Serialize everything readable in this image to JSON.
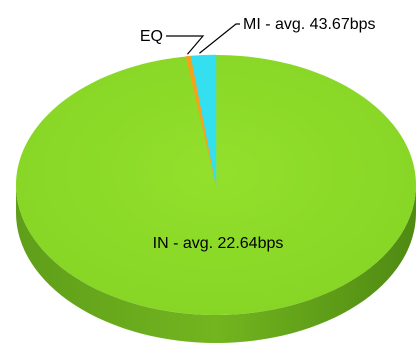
{
  "chart_data": {
    "type": "pie",
    "title": "",
    "slices": [
      {
        "name": "IN",
        "label": "IN - avg. 22.64bps",
        "value": 97.6,
        "color": "#8fdc2a"
      },
      {
        "name": "EQ",
        "label": "EQ",
        "value": 0.4,
        "color": "#f5a21a"
      },
      {
        "name": "MI",
        "label": "MI - avg. 43.67bps",
        "value": 2.0,
        "color": "#34e0ef"
      }
    ],
    "style": "3d",
    "legend": "none"
  }
}
